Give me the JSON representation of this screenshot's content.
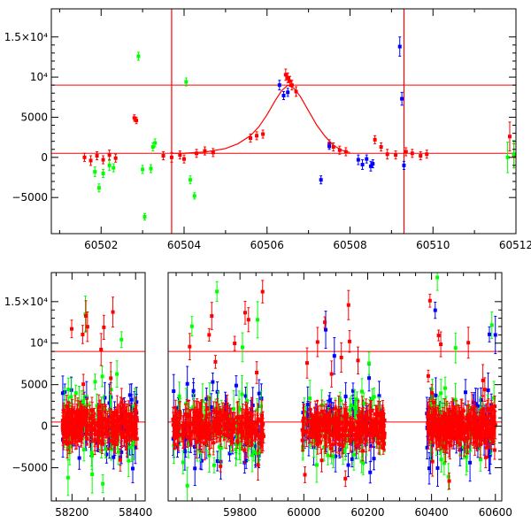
{
  "chart_data": [
    {
      "type": "scatter",
      "title": "",
      "xlabel": "",
      "ylabel": "",
      "xlim": [
        60500.8,
        60512
      ],
      "ylim": [
        -9500,
        18500
      ],
      "x_ticks": [
        60502,
        60504,
        60506,
        60508,
        60510,
        60512
      ],
      "y_ticks": [
        -5000,
        0,
        5000,
        10000,
        15000
      ],
      "y_tick_labels": [
        "−5000",
        "0",
        "5000",
        "10⁴",
        "1.5×10⁴"
      ],
      "hlines": [
        500,
        9000
      ],
      "vlines": [
        60503.7,
        60509.3
      ],
      "model_curve": {
        "color": "#ff0000",
        "x": [
          60503.7,
          60504.0,
          60504.5,
          60505.0,
          60505.3,
          60505.6,
          60505.8,
          60506.0,
          60506.2,
          60506.35,
          60506.5,
          60506.65,
          60506.8,
          60507.0,
          60507.2,
          60507.4,
          60507.6,
          60507.8,
          60508.0
        ],
        "y": [
          500,
          520,
          650,
          1100,
          1700,
          2700,
          3800,
          5300,
          7100,
          8300,
          9000,
          8600,
          7600,
          5800,
          4000,
          2600,
          1500,
          900,
          600
        ]
      },
      "series": [
        {
          "color": "#ff0000",
          "points": [
            [
              60501.6,
              0,
              500
            ],
            [
              60501.75,
              -400,
              600
            ],
            [
              60501.9,
              200,
              500
            ],
            [
              60502.05,
              -300,
              500
            ],
            [
              60502.2,
              300,
              600
            ],
            [
              60502.35,
              -100,
              500
            ],
            [
              60502.8,
              4900,
              400
            ],
            [
              60502.85,
              4600,
              400
            ],
            [
              60503.5,
              200,
              500
            ],
            [
              60503.7,
              0,
              600
            ],
            [
              60503.9,
              300,
              500
            ],
            [
              60504.0,
              -200,
              500
            ],
            [
              60504.3,
              500,
              500
            ],
            [
              60504.5,
              800,
              500
            ],
            [
              60504.7,
              600,
              500
            ],
            [
              60505.6,
              2400,
              500
            ],
            [
              60505.75,
              2700,
              500
            ],
            [
              60505.9,
              2900,
              500
            ],
            [
              60506.45,
              10300,
              700
            ],
            [
              60506.5,
              9900,
              600
            ],
            [
              60506.55,
              9500,
              600
            ],
            [
              60506.6,
              9000,
              600
            ],
            [
              60506.7,
              8200,
              600
            ],
            [
              60507.5,
              1700,
              500
            ],
            [
              60507.6,
              1300,
              500
            ],
            [
              60507.75,
              900,
              500
            ],
            [
              60507.9,
              700,
              500
            ],
            [
              60508.6,
              2200,
              500
            ],
            [
              60508.75,
              1300,
              500
            ],
            [
              60508.9,
              400,
              600
            ],
            [
              60509.1,
              300,
              500
            ],
            [
              60509.35,
              700,
              500
            ],
            [
              60509.5,
              500,
              500
            ],
            [
              60509.7,
              200,
              500
            ],
            [
              60509.85,
              400,
              500
            ],
            [
              60511.85,
              2600,
              1800
            ],
            [
              60511.95,
              200,
              1500
            ]
          ]
        },
        {
          "color": "#00ff00",
          "points": [
            [
              60501.85,
              -1800,
              600
            ],
            [
              60501.95,
              -3800,
              500
            ],
            [
              60502.05,
              -2000,
              500
            ],
            [
              60502.2,
              -1000,
              600
            ],
            [
              60502.3,
              -1300,
              500
            ],
            [
              60502.9,
              12600,
              500
            ],
            [
              60503.0,
              -1500,
              500
            ],
            [
              60503.05,
              -7400,
              400
            ],
            [
              60503.2,
              -1400,
              500
            ],
            [
              60503.25,
              1300,
              500
            ],
            [
              60503.3,
              1800,
              500
            ],
            [
              60504.05,
              9400,
              500
            ],
            [
              60504.15,
              -2800,
              500
            ],
            [
              60504.25,
              -4800,
              400
            ],
            [
              60511.8,
              0,
              1900
            ],
            [
              60511.95,
              400,
              1700
            ]
          ]
        },
        {
          "color": "#0000ff",
          "points": [
            [
              60506.3,
              9000,
              600
            ],
            [
              60506.4,
              7700,
              500
            ],
            [
              60506.5,
              8100,
              500
            ],
            [
              60507.3,
              -2800,
              500
            ],
            [
              60507.5,
              1400,
              400
            ],
            [
              60508.2,
              -300,
              600
            ],
            [
              60508.3,
              -900,
              600
            ],
            [
              60508.4,
              -200,
              500
            ],
            [
              60508.5,
              -1100,
              600
            ],
            [
              60508.55,
              -800,
              500
            ],
            [
              60509.2,
              13800,
              1200
            ],
            [
              60509.25,
              7300,
              800
            ],
            [
              60509.3,
              -1000,
              500
            ]
          ]
        }
      ]
    },
    {
      "type": "scatter",
      "title": "",
      "xlabel": "",
      "ylabel": "",
      "broken_x_axis": true,
      "segments": [
        {
          "xlim": [
            58135,
            58430
          ],
          "x_ticks": [
            58200,
            58400
          ]
        },
        {
          "xlim": [
            59575,
            60620
          ],
          "x_ticks": [
            59800,
            60000,
            60200,
            60400,
            60600
          ]
        }
      ],
      "ylim": [
        -9000,
        18500
      ],
      "y_ticks": [
        -5000,
        0,
        5000,
        10000,
        15000
      ],
      "y_tick_labels": [
        "−5000",
        "0",
        "5000",
        "10⁴",
        "1.5×10⁴"
      ],
      "hlines": [
        500,
        9000
      ],
      "observing_seasons": [
        [
          58170,
          58405
        ],
        [
          59590,
          59875
        ],
        [
          59995,
          60255
        ],
        [
          60385,
          60600
        ]
      ],
      "series_colors": [
        "#ff0000",
        "#00ff00",
        "#0000ff"
      ]
    }
  ]
}
